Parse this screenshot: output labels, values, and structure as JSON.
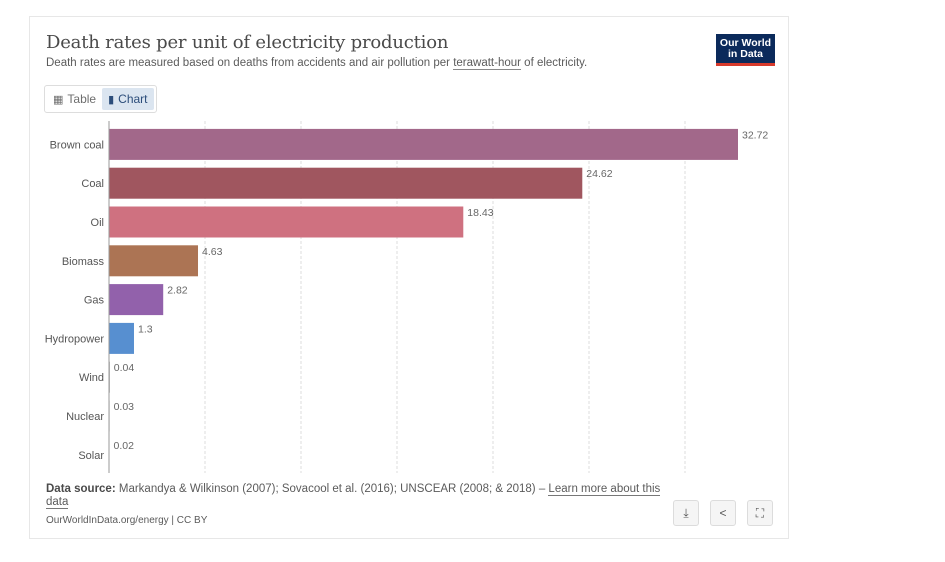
{
  "header": {
    "title": "Death rates per unit of electricity production",
    "subtitle_pre": "Death rates are measured based on deaths from accidents and air pollution per ",
    "subtitle_term": "terawatt-hour",
    "subtitle_post": " of electricity.",
    "logo_line1": "Our World",
    "logo_line2": "in Data"
  },
  "tabs": {
    "table_label": "Table",
    "chart_label": "Chart"
  },
  "footer": {
    "source_label": "Data source:",
    "source_text": "Markandya & Wilkinson (2007); Sovacool et al. (2016); UNSCEAR (2008; & 2018) – ",
    "learn_more": "Learn more about this data",
    "url_text": "OurWorldInData.org/energy | CC BY",
    "icons": [
      "download-icon",
      "share-icon",
      "fullscreen-icon"
    ]
  },
  "chart_data": {
    "type": "bar",
    "orientation": "horizontal",
    "title": "Death rates per unit of electricity production",
    "xlim": [
      0,
      32.72
    ],
    "grid": true,
    "categories": [
      "Brown coal",
      "Coal",
      "Oil",
      "Biomass",
      "Gas",
      "Hydropower",
      "Wind",
      "Nuclear",
      "Solar"
    ],
    "values": [
      32.72,
      24.62,
      18.43,
      4.63,
      2.82,
      1.3,
      0.04,
      0.03,
      0.02
    ],
    "value_labels": [
      "32.72",
      "24.62",
      "18.43",
      "4.63",
      "2.82",
      "1.3",
      "0.04",
      "0.03",
      "0.02"
    ],
    "colors": [
      "#a2688a",
      "#a0565f",
      "#cf7180",
      "#ac7454",
      "#9261ab",
      "#578fd0",
      "#888888",
      "#888888",
      "#888888"
    ]
  }
}
